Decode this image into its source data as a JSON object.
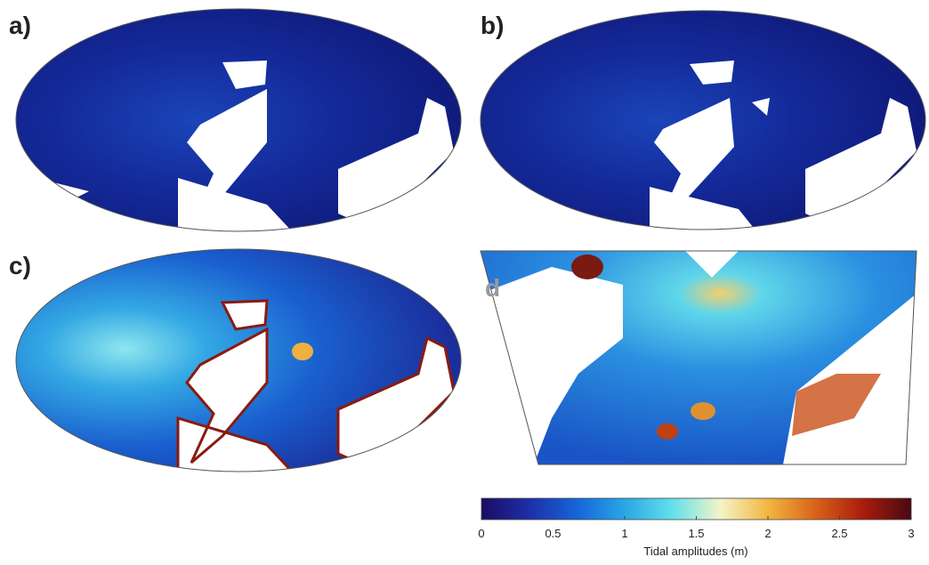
{
  "panels": [
    {
      "label": "a)"
    },
    {
      "label": "b)"
    },
    {
      "label": "c)"
    },
    {
      "label": "d"
    }
  ],
  "colorbar": {
    "label": "Tidal amplitudes (m)",
    "lim": [
      0,
      3
    ],
    "ticks": [
      0,
      0.5,
      1,
      1.5,
      2,
      2.5,
      3
    ],
    "colors": [
      "#1b0c64",
      "#1d2fa8",
      "#1665d8",
      "#2aa6e6",
      "#62e0ec",
      "#f4f4c8",
      "#f2b640",
      "#d8621a",
      "#a81c0c",
      "#4a0812"
    ]
  }
}
